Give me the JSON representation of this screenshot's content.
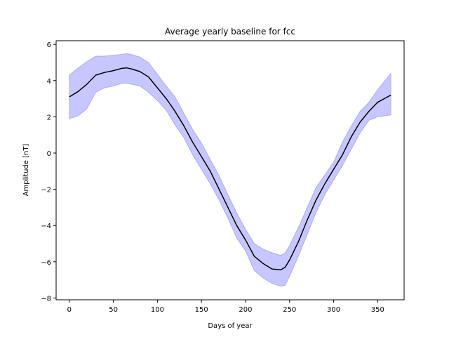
{
  "chart_data": {
    "type": "line",
    "title": "Average yearly baseline for fcc",
    "xlabel": "Days of year",
    "ylabel": "Amplitude [nT]",
    "xlim": [
      -15,
      380
    ],
    "ylim": [
      -8.1,
      6.2
    ],
    "xticks": [
      0,
      50,
      100,
      150,
      200,
      250,
      300,
      350
    ],
    "yticks": [
      -8,
      -6,
      -4,
      -2,
      0,
      2,
      4,
      6
    ],
    "grid": false,
    "series": [
      {
        "role": "mean",
        "color": "#000000",
        "x": [
          0,
          10,
          20,
          30,
          40,
          50,
          60,
          65,
          70,
          80,
          90,
          100,
          110,
          120,
          130,
          140,
          150,
          160,
          170,
          180,
          190,
          200,
          210,
          220,
          230,
          240,
          245,
          250,
          260,
          270,
          280,
          290,
          300,
          310,
          320,
          330,
          340,
          350,
          365
        ],
        "y": [
          3.1,
          3.4,
          3.8,
          4.3,
          4.45,
          4.55,
          4.68,
          4.7,
          4.65,
          4.5,
          4.2,
          3.6,
          3.0,
          2.3,
          1.5,
          0.6,
          -0.2,
          -1.0,
          -2.0,
          -3.0,
          -4.0,
          -4.8,
          -5.7,
          -6.1,
          -6.4,
          -6.45,
          -6.3,
          -5.9,
          -4.9,
          -3.7,
          -2.6,
          -1.7,
          -0.9,
          -0.1,
          0.9,
          1.7,
          2.3,
          2.8,
          3.2
        ]
      },
      {
        "role": "band",
        "color": "#0000ff",
        "opacity": 0.22,
        "x": [
          0,
          10,
          20,
          30,
          40,
          50,
          60,
          65,
          70,
          80,
          90,
          100,
          110,
          120,
          130,
          140,
          150,
          160,
          170,
          180,
          190,
          200,
          210,
          220,
          230,
          240,
          245,
          250,
          260,
          270,
          280,
          290,
          300,
          310,
          320,
          330,
          340,
          350,
          365
        ],
        "upper": [
          4.3,
          4.7,
          5.05,
          5.35,
          5.35,
          5.4,
          5.45,
          5.5,
          5.45,
          5.3,
          5.0,
          4.35,
          3.7,
          3.1,
          2.2,
          1.3,
          0.55,
          -0.35,
          -1.25,
          -2.3,
          -3.3,
          -4.2,
          -5.0,
          -5.3,
          -5.5,
          -5.65,
          -5.5,
          -5.1,
          -4.1,
          -3.0,
          -1.9,
          -1.2,
          -0.5,
          0.6,
          1.5,
          2.3,
          2.8,
          3.5,
          4.4
        ],
        "lower": [
          1.9,
          2.05,
          2.45,
          3.35,
          3.6,
          3.7,
          3.85,
          3.85,
          3.8,
          3.7,
          3.35,
          2.9,
          2.35,
          1.55,
          0.85,
          -0.1,
          -0.9,
          -1.7,
          -2.6,
          -3.6,
          -4.7,
          -5.4,
          -6.5,
          -6.9,
          -7.2,
          -7.35,
          -7.3,
          -6.8,
          -5.7,
          -4.5,
          -3.3,
          -2.3,
          -1.5,
          -0.7,
          0.2,
          1.1,
          1.8,
          2.0,
          2.1
        ]
      }
    ]
  }
}
